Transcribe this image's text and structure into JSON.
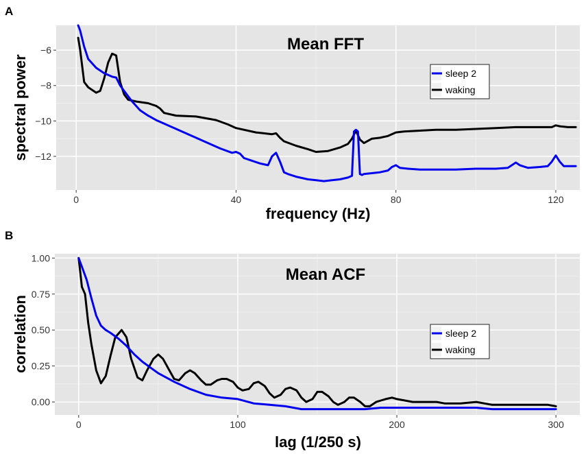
{
  "chart_data": [
    {
      "type": "line",
      "panel": "A",
      "title": "Mean FFT",
      "xlabel": "frequency (Hz)",
      "ylabel": "spectral power",
      "xlim": [
        -5,
        126
      ],
      "ylim": [
        -13.9,
        -4.6
      ],
      "xticks": [
        0,
        40,
        80,
        120
      ],
      "yticks": [
        -6,
        -8,
        -10,
        -12
      ],
      "grid": true,
      "legend": "top-right",
      "series": [
        {
          "name": "sleep 2",
          "color": "#0000ee",
          "x": [
            0.5,
            1,
            2,
            3,
            5,
            7,
            9,
            10,
            11,
            12,
            14,
            16,
            18,
            20,
            22,
            25,
            28,
            30,
            33,
            36,
            39,
            40,
            41,
            42,
            44,
            46,
            48,
            49,
            50,
            51,
            52,
            53,
            55,
            58,
            60,
            62,
            64,
            66,
            68,
            69,
            69.5,
            70,
            70.5,
            71,
            71.5,
            72,
            74,
            76,
            78,
            79,
            80,
            81,
            83,
            86,
            90,
            95,
            100,
            105,
            108,
            109,
            110,
            111,
            113,
            116,
            118,
            119,
            120,
            121,
            122,
            124,
            125
          ],
          "values": [
            -4.6,
            -4.9,
            -5.8,
            -6.5,
            -7.0,
            -7.3,
            -7.5,
            -7.55,
            -8.0,
            -8.3,
            -8.9,
            -9.4,
            -9.7,
            -9.95,
            -10.15,
            -10.45,
            -10.75,
            -10.95,
            -11.25,
            -11.55,
            -11.8,
            -11.75,
            -11.85,
            -12.1,
            -12.25,
            -12.4,
            -12.5,
            -12.0,
            -11.8,
            -12.3,
            -12.9,
            -13.0,
            -13.15,
            -13.3,
            -13.35,
            -13.4,
            -13.35,
            -13.3,
            -13.2,
            -13.1,
            -10.6,
            -10.5,
            -10.6,
            -13.0,
            -13.05,
            -13.0,
            -12.95,
            -12.9,
            -12.8,
            -12.6,
            -12.5,
            -12.65,
            -12.7,
            -12.75,
            -12.75,
            -12.75,
            -12.7,
            -12.7,
            -12.65,
            -12.5,
            -12.35,
            -12.5,
            -12.65,
            -12.6,
            -12.55,
            -12.3,
            -11.95,
            -12.3,
            -12.55,
            -12.55,
            -12.55
          ]
        },
        {
          "name": "waking",
          "color": "#000000",
          "x": [
            0.5,
            1,
            2,
            3,
            5,
            6,
            7,
            8,
            9,
            10,
            11,
            12,
            13,
            15,
            18,
            20,
            21,
            22,
            25,
            30,
            35,
            38,
            40,
            45,
            49,
            50,
            51,
            52,
            55,
            58,
            60,
            63,
            66,
            68,
            69,
            70,
            71,
            72,
            74,
            76,
            78,
            80,
            82,
            86,
            90,
            95,
            100,
            105,
            110,
            115,
            119,
            120,
            121,
            123,
            125
          ],
          "values": [
            -5.3,
            -6.0,
            -7.8,
            -8.1,
            -8.4,
            -8.3,
            -7.6,
            -6.7,
            -6.2,
            -6.3,
            -7.8,
            -8.5,
            -8.8,
            -8.9,
            -9.0,
            -9.15,
            -9.3,
            -9.55,
            -9.7,
            -9.75,
            -9.95,
            -10.2,
            -10.4,
            -10.65,
            -10.75,
            -10.7,
            -10.95,
            -11.15,
            -11.4,
            -11.6,
            -11.75,
            -11.7,
            -11.5,
            -11.3,
            -11.0,
            -10.55,
            -11.05,
            -11.25,
            -11.0,
            -10.95,
            -10.85,
            -10.65,
            -10.6,
            -10.55,
            -10.5,
            -10.5,
            -10.45,
            -10.4,
            -10.35,
            -10.35,
            -10.35,
            -10.25,
            -10.3,
            -10.35,
            -10.35
          ]
        }
      ]
    },
    {
      "type": "line",
      "panel": "B",
      "title": "Mean ACF",
      "xlabel": "lag (1/250 s)",
      "ylabel": "correlation",
      "xlim": [
        -15,
        315
      ],
      "ylim": [
        -0.09,
        1.03
      ],
      "xticks": [
        0,
        100,
        200,
        300
      ],
      "yticks": [
        1.0,
        0.75,
        0.5,
        0.25,
        0.0
      ],
      "ytick_labels": [
        "1.00",
        "0.75",
        "0.50",
        "0.25",
        "0.00"
      ],
      "grid": true,
      "legend": "right",
      "series": [
        {
          "name": "sleep 2",
          "color": "#0000ee",
          "x": [
            0,
            2,
            5,
            8,
            11,
            14,
            17,
            20,
            25,
            30,
            35,
            40,
            45,
            50,
            60,
            70,
            80,
            90,
            100,
            110,
            120,
            130,
            140,
            150,
            160,
            170,
            180,
            190,
            200,
            210,
            220,
            230,
            240,
            250,
            260,
            270,
            280,
            290,
            300
          ],
          "values": [
            1.0,
            0.94,
            0.85,
            0.72,
            0.6,
            0.53,
            0.5,
            0.48,
            0.44,
            0.39,
            0.33,
            0.28,
            0.24,
            0.2,
            0.14,
            0.09,
            0.05,
            0.03,
            0.02,
            -0.01,
            -0.02,
            -0.03,
            -0.05,
            -0.05,
            -0.05,
            -0.05,
            -0.05,
            -0.04,
            -0.04,
            -0.04,
            -0.04,
            -0.04,
            -0.04,
            -0.04,
            -0.05,
            -0.05,
            -0.05,
            -0.05,
            -0.05
          ]
        },
        {
          "name": "waking",
          "color": "#000000",
          "x": [
            0,
            2,
            4,
            6,
            8,
            11,
            14,
            17,
            20,
            23,
            27,
            30,
            33,
            37,
            40,
            43,
            47,
            50,
            53,
            57,
            60,
            63,
            67,
            70,
            73,
            77,
            80,
            83,
            87,
            90,
            93,
            97,
            100,
            103,
            107,
            110,
            113,
            117,
            120,
            123,
            127,
            130,
            133,
            137,
            140,
            143,
            147,
            150,
            153,
            157,
            160,
            163,
            167,
            170,
            173,
            177,
            180,
            183,
            187,
            190,
            193,
            197,
            200,
            210,
            220,
            225,
            230,
            240,
            250,
            260,
            270,
            280,
            290,
            295,
            300
          ],
          "values": [
            1.0,
            0.8,
            0.75,
            0.55,
            0.4,
            0.22,
            0.13,
            0.18,
            0.32,
            0.45,
            0.5,
            0.45,
            0.3,
            0.17,
            0.15,
            0.22,
            0.3,
            0.33,
            0.3,
            0.22,
            0.16,
            0.15,
            0.2,
            0.22,
            0.2,
            0.15,
            0.12,
            0.12,
            0.15,
            0.16,
            0.16,
            0.14,
            0.1,
            0.08,
            0.09,
            0.13,
            0.14,
            0.11,
            0.06,
            0.03,
            0.05,
            0.09,
            0.1,
            0.08,
            0.03,
            0.0,
            0.02,
            0.07,
            0.07,
            0.04,
            0.0,
            -0.02,
            0.0,
            0.03,
            0.03,
            0.0,
            -0.03,
            -0.03,
            0.0,
            0.01,
            0.02,
            0.03,
            0.02,
            0.0,
            0.0,
            0.0,
            -0.01,
            -0.01,
            0.0,
            -0.02,
            -0.02,
            -0.02,
            -0.02,
            -0.02,
            -0.03
          ]
        }
      ]
    }
  ]
}
